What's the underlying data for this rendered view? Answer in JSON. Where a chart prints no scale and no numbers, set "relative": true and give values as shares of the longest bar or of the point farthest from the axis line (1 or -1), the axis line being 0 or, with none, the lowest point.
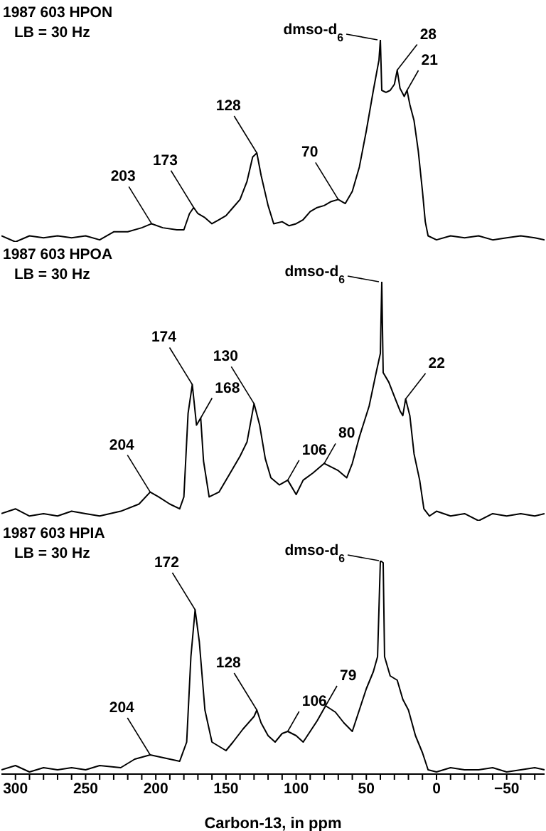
{
  "chart_data": [
    {
      "type": "line",
      "title": "1987 603 HPON",
      "subtitle": "LB = 30 Hz",
      "relative": true,
      "xlim": [
        310,
        -77
      ],
      "tick_labels": false,
      "marker": "none",
      "line_style": "solid",
      "series": [
        {
          "color": "#000000",
          "x": [
            310,
            300,
            290,
            280,
            270,
            260,
            250,
            240,
            230,
            220,
            210,
            203,
            195,
            185,
            180,
            176,
            173,
            170,
            165,
            160,
            155,
            150,
            145,
            140,
            135,
            131,
            128,
            125,
            120,
            116,
            110,
            105,
            100,
            95,
            90,
            85,
            80,
            75,
            70,
            65,
            60,
            55,
            50,
            45,
            41,
            40,
            39,
            36,
            33,
            30,
            28,
            26,
            23,
            21,
            19,
            16,
            13,
            10,
            8,
            6,
            0,
            -10,
            -20,
            -30,
            -40,
            -50,
            -60,
            -70,
            -77
          ],
          "values": [
            0.03,
            0,
            0.03,
            0.02,
            0.03,
            0.02,
            0.03,
            0.01,
            0.05,
            0.05,
            0.07,
            0.09,
            0.07,
            0.06,
            0.06,
            0.14,
            0.17,
            0.14,
            0.12,
            0.09,
            0.11,
            0.13,
            0.17,
            0.21,
            0.3,
            0.42,
            0.44,
            0.33,
            0.18,
            0.09,
            0.1,
            0.08,
            0.09,
            0.11,
            0.15,
            0.17,
            0.18,
            0.2,
            0.21,
            0.19,
            0.25,
            0.37,
            0.55,
            0.75,
            0.9,
            1,
            0.75,
            0.74,
            0.75,
            0.78,
            0.85,
            0.76,
            0.72,
            0.75,
            0.68,
            0.6,
            0.45,
            0.25,
            0.1,
            0.03,
            0.01,
            0.03,
            0.02,
            0.03,
            0.01,
            0.02,
            0.03,
            0.02,
            0.01
          ]
        }
      ],
      "annotations": [
        {
          "text": "203",
          "x": 203,
          "y": 0.09
        },
        {
          "text": "173",
          "x": 173,
          "y": 0.17
        },
        {
          "text": "128",
          "x": 128,
          "y": 0.44
        },
        {
          "text": "70",
          "x": 70,
          "y": 0.21
        },
        {
          "text": "dmso-d$_{6}$",
          "x": 40,
          "y": 1
        },
        {
          "text": "28",
          "x": 28,
          "y": 0.85
        },
        {
          "text": "21",
          "x": 21,
          "y": 0.75
        }
      ]
    },
    {
      "type": "line",
      "title": "1987 603 HPOA",
      "subtitle": "LB = 30 Hz",
      "relative": true,
      "xlim": [
        310,
        -77
      ],
      "tick_labels": false,
      "marker": "none",
      "line_style": "solid",
      "series": [
        {
          "color": "#000000",
          "x": [
            310,
            300,
            290,
            280,
            270,
            260,
            250,
            240,
            225,
            212,
            204,
            198,
            190,
            183,
            180,
            177,
            174,
            171,
            168,
            166,
            162,
            155,
            148,
            140,
            135,
            130,
            126,
            122,
            118,
            112,
            106,
            100,
            95,
            88,
            80,
            70,
            64,
            60,
            55,
            48,
            43,
            40,
            39,
            38,
            34,
            30,
            26,
            24,
            22,
            19,
            16,
            12,
            9,
            5,
            0,
            -10,
            -20,
            -30,
            -40,
            -50,
            -60,
            -70,
            -77
          ],
          "values": [
            0.03,
            0.05,
            0.02,
            0.03,
            0.02,
            0.04,
            0.03,
            0.02,
            0.04,
            0.07,
            0.12,
            0.1,
            0.07,
            0.05,
            0.1,
            0.45,
            0.57,
            0.4,
            0.43,
            0.25,
            0.1,
            0.12,
            0.19,
            0.27,
            0.33,
            0.49,
            0.4,
            0.26,
            0.18,
            0.15,
            0.17,
            0.11,
            0.17,
            0.2,
            0.24,
            0.21,
            0.18,
            0.24,
            0.35,
            0.48,
            0.62,
            0.7,
            1,
            0.62,
            0.58,
            0.52,
            0.46,
            0.44,
            0.51,
            0.44,
            0.28,
            0.17,
            0.05,
            0.02,
            0.04,
            0.02,
            0.03,
            0,
            0.03,
            0.02,
            0.03,
            0.02,
            0.03
          ]
        }
      ],
      "annotations": [
        {
          "text": "204",
          "x": 204,
          "y": 0.12
        },
        {
          "text": "174",
          "x": 174,
          "y": 0.57
        },
        {
          "text": "168",
          "x": 168,
          "y": 0.43
        },
        {
          "text": "130",
          "x": 130,
          "y": 0.49
        },
        {
          "text": "106",
          "x": 106,
          "y": 0.17
        },
        {
          "text": "80",
          "x": 80,
          "y": 0.24
        },
        {
          "text": "dmso-d$_{6}$",
          "x": 39,
          "y": 1
        },
        {
          "text": "22",
          "x": 22,
          "y": 0.51
        }
      ]
    },
    {
      "type": "line",
      "title": "1987 603 HPIA",
      "subtitle": "LB = 30 Hz",
      "relative": true,
      "xlabel": "Carbon-13, in ppm",
      "xlim": [
        310,
        -77
      ],
      "tick_labels": "x",
      "marker": "none",
      "line_style": "solid",
      "xticks": [
        300,
        {
          "value": 290,
          "label": null
        },
        {
          "value": 280,
          "label": null
        },
        {
          "value": 270,
          "label": null
        },
        {
          "value": 260,
          "label": null
        },
        250,
        {
          "value": 240,
          "label": null
        },
        {
          "value": 230,
          "label": null
        },
        {
          "value": 220,
          "label": null
        },
        {
          "value": 210,
          "label": null
        },
        200,
        {
          "value": 190,
          "label": null
        },
        {
          "value": 180,
          "label": null
        },
        {
          "value": 170,
          "label": null
        },
        {
          "value": 160,
          "label": null
        },
        150,
        {
          "value": 140,
          "label": null
        },
        {
          "value": 130,
          "label": null
        },
        {
          "value": 120,
          "label": null
        },
        {
          "value": 110,
          "label": null
        },
        100,
        {
          "value": 90,
          "label": null
        },
        {
          "value": 80,
          "label": null
        },
        {
          "value": 70,
          "label": null
        },
        {
          "value": 60,
          "label": null
        },
        50,
        {
          "value": 40,
          "label": null
        },
        {
          "value": 30,
          "label": null
        },
        {
          "value": 20,
          "label": null
        },
        {
          "value": 10,
          "label": null
        },
        0,
        {
          "value": -10,
          "label": null
        },
        {
          "value": -20,
          "label": null
        },
        {
          "value": -30,
          "label": null
        },
        {
          "value": -40,
          "label": null
        },
        {
          "value": -50,
          "label": "−50"
        },
        {
          "value": -60,
          "label": null
        },
        {
          "value": -70,
          "label": null
        }
      ],
      "series": [
        {
          "color": "#000000",
          "x": [
            310,
            300,
            290,
            280,
            270,
            260,
            250,
            240,
            225,
            215,
            204,
            190,
            183,
            178,
            175,
            172,
            169,
            165,
            160,
            155,
            150,
            145,
            138,
            130,
            128,
            125,
            120,
            115,
            110,
            106,
            100,
            95,
            90,
            85,
            79,
            72,
            66,
            60,
            55,
            50,
            45,
            42,
            40,
            38,
            37,
            33,
            28,
            24,
            20,
            15,
            10,
            6,
            0,
            -10,
            -20,
            -30,
            -40,
            -50,
            -60,
            -70,
            -77
          ],
          "values": [
            0.02,
            0.04,
            0.01,
            0.03,
            0.02,
            0.03,
            0.02,
            0.04,
            0.03,
            0.07,
            0.09,
            0.07,
            0.06,
            0.15,
            0.55,
            0.77,
            0.62,
            0.3,
            0.15,
            0.13,
            0.11,
            0.15,
            0.21,
            0.27,
            0.3,
            0.24,
            0.18,
            0.15,
            0.19,
            0.2,
            0.18,
            0.15,
            0.2,
            0.25,
            0.32,
            0.29,
            0.24,
            0.2,
            0.3,
            0.4,
            0.48,
            0.55,
            1,
            0.99,
            0.55,
            0.46,
            0.44,
            0.35,
            0.3,
            0.18,
            0.1,
            0.02,
            0.01,
            0.03,
            0.02,
            0.02,
            0.03,
            0.01,
            0.02,
            0.03,
            0.02
          ]
        }
      ],
      "annotations": [
        {
          "text": "204",
          "x": 204,
          "y": 0.09
        },
        {
          "text": "172",
          "x": 172,
          "y": 0.77
        },
        {
          "text": "128",
          "x": 128,
          "y": 0.3
        },
        {
          "text": "106",
          "x": 106,
          "y": 0.2
        },
        {
          "text": "79",
          "x": 79,
          "y": 0.32
        },
        {
          "text": "dmso-d$_{6}$",
          "x": 39,
          "y": 1
        }
      ]
    }
  ]
}
